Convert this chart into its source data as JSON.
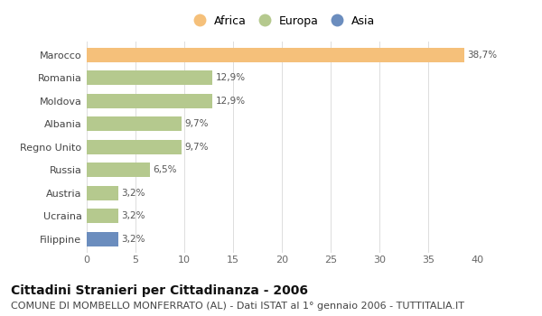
{
  "categories": [
    "Marocco",
    "Romania",
    "Moldova",
    "Albania",
    "Regno Unito",
    "Russia",
    "Austria",
    "Ucraina",
    "Filippine"
  ],
  "values": [
    38.7,
    12.9,
    12.9,
    9.7,
    9.7,
    6.5,
    3.2,
    3.2,
    3.2
  ],
  "labels": [
    "38,7%",
    "12,9%",
    "12,9%",
    "9,7%",
    "9,7%",
    "6,5%",
    "3,2%",
    "3,2%",
    "3,2%"
  ],
  "colors": [
    "#F5C07A",
    "#B5C98E",
    "#B5C98E",
    "#B5C98E",
    "#B5C98E",
    "#B5C98E",
    "#B5C98E",
    "#B5C98E",
    "#6B8DBE"
  ],
  "legend_labels": [
    "Africa",
    "Europa",
    "Asia"
  ],
  "legend_colors": [
    "#F5C07A",
    "#B5C98E",
    "#6B8DBE"
  ],
  "xlim": [
    0,
    40
  ],
  "xticks": [
    0,
    5,
    10,
    15,
    20,
    25,
    30,
    35,
    40
  ],
  "title": "Cittadini Stranieri per Cittadinanza - 2006",
  "subtitle": "COMUNE DI MOMBELLO MONFERRATO (AL) - Dati ISTAT al 1° gennaio 2006 - TUTTITALIA.IT",
  "bg_color": "#FFFFFF",
  "plot_bg": "#FFFFFF",
  "bar_height": 0.62,
  "title_fontsize": 10,
  "subtitle_fontsize": 8,
  "label_fontsize": 7.5,
  "tick_fontsize": 8,
  "legend_fontsize": 9
}
